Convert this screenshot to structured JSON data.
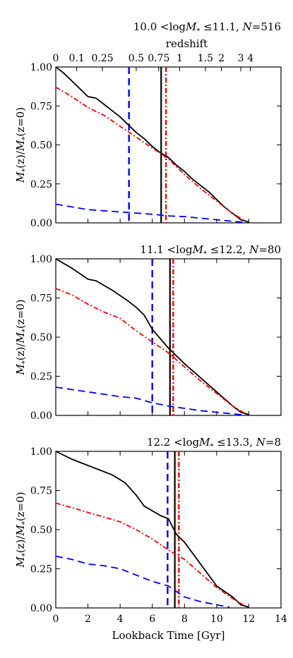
{
  "chart_data": [
    {
      "type": "line",
      "title": "10.0 <logM* ≤11.1, N=516",
      "ylabel": "M*(z)/M*(z=0)",
      "xlabel": "",
      "xlim": [
        0,
        14
      ],
      "ylim": [
        0,
        1
      ],
      "yticks": [
        "0.00",
        "0.25",
        "0.50",
        "0.75",
        "1.00"
      ],
      "x_top_axis": {
        "label": "redshift",
        "ticks": [
          {
            "label": "0",
            "lookback_gyr": 0.0
          },
          {
            "label": "0.1",
            "lookback_gyr": 1.3
          },
          {
            "label": "0.25",
            "lookback_gyr": 2.9
          },
          {
            "label": "0.5",
            "lookback_gyr": 5.0
          },
          {
            "label": "0.75",
            "lookback_gyr": 6.4
          },
          {
            "label": "1",
            "lookback_gyr": 7.7
          },
          {
            "label": "1.5",
            "lookback_gyr": 9.3
          },
          {
            "label": "2",
            "lookback_gyr": 10.3
          },
          {
            "label": "3",
            "lookback_gyr": 11.5
          },
          {
            "label": "4",
            "lookback_gyr": 12.1
          }
        ]
      },
      "series": [
        {
          "style": "solid",
          "color": "#000000",
          "x": [
            0,
            0.5,
            1.5,
            2.0,
            2.5,
            3.0,
            3.5,
            4.0,
            4.5,
            5.0,
            5.5,
            6.0,
            6.5,
            7.0,
            7.5,
            8.0,
            8.5,
            9.0,
            9.5,
            10.0,
            10.5,
            11.0,
            11.5,
            12.0
          ],
          "y": [
            1.0,
            0.96,
            0.86,
            0.81,
            0.8,
            0.76,
            0.72,
            0.68,
            0.63,
            0.58,
            0.54,
            0.49,
            0.45,
            0.42,
            0.37,
            0.33,
            0.28,
            0.24,
            0.2,
            0.15,
            0.1,
            0.06,
            0.02,
            0.005
          ]
        },
        {
          "style": "dashdot",
          "color": "#ff0000",
          "x": [
            0,
            1.0,
            2.0,
            3.0,
            4.0,
            5.0,
            6.0,
            7.0,
            8.0,
            9.0,
            10.0,
            11.0,
            11.8
          ],
          "y": [
            0.87,
            0.81,
            0.74,
            0.69,
            0.62,
            0.55,
            0.48,
            0.41,
            0.31,
            0.22,
            0.14,
            0.06,
            0.01
          ]
        },
        {
          "style": "dashed",
          "color": "#0000ff",
          "x": [
            0,
            2.0,
            4.0,
            6.0,
            7.0,
            8.0,
            9.0,
            10.0,
            11.0,
            11.8
          ],
          "y": [
            0.12,
            0.085,
            0.07,
            0.055,
            0.045,
            0.04,
            0.03,
            0.02,
            0.01,
            0.002
          ]
        }
      ],
      "vlines": [
        {
          "x": 4.55,
          "style": "dashed",
          "color": "#0000ff"
        },
        {
          "x": 6.55,
          "style": "solid",
          "color": "#000000"
        },
        {
          "x": 6.85,
          "style": "dashdot",
          "color": "#ff0000"
        }
      ]
    },
    {
      "type": "line",
      "title": "11.1 <logM* ≤12.2, N=80",
      "ylabel": "M*(z)/M*(z=0)",
      "xlabel": "",
      "xlim": [
        0,
        14
      ],
      "ylim": [
        0,
        1
      ],
      "yticks": [
        "0.00",
        "0.25",
        "0.50",
        "0.75",
        "1.00"
      ],
      "series": [
        {
          "style": "solid",
          "color": "#000000",
          "x": [
            0,
            1.0,
            2.0,
            2.5,
            3.5,
            4.5,
            5.0,
            5.5,
            6.0,
            7.0,
            8.0,
            9.0,
            10.0,
            11.0,
            11.5,
            12.0
          ],
          "y": [
            1.0,
            0.94,
            0.87,
            0.86,
            0.8,
            0.73,
            0.69,
            0.64,
            0.55,
            0.43,
            0.33,
            0.24,
            0.15,
            0.06,
            0.02,
            0.005
          ]
        },
        {
          "style": "dashdot",
          "color": "#ff0000",
          "x": [
            0,
            1.0,
            2.0,
            3.0,
            4.0,
            5.0,
            6.0,
            7.0,
            8.0,
            9.0,
            10.0,
            11.0,
            11.8
          ],
          "y": [
            0.81,
            0.77,
            0.71,
            0.66,
            0.62,
            0.54,
            0.47,
            0.4,
            0.31,
            0.22,
            0.14,
            0.06,
            0.01
          ]
        },
        {
          "style": "dashed",
          "color": "#0000ff",
          "x": [
            0,
            2.0,
            4.0,
            5.0,
            6.0,
            7.0,
            8.0,
            9.0,
            10.0,
            11.0,
            11.8
          ],
          "y": [
            0.18,
            0.15,
            0.12,
            0.11,
            0.08,
            0.06,
            0.045,
            0.03,
            0.02,
            0.01,
            0.002
          ]
        }
      ],
      "vlines": [
        {
          "x": 6.0,
          "style": "dashed",
          "color": "#0000ff"
        },
        {
          "x": 7.1,
          "style": "solid",
          "color": "#000000"
        },
        {
          "x": 7.3,
          "style": "dashdot",
          "color": "#ff0000"
        }
      ]
    },
    {
      "type": "line",
      "title": "12.2 <logM* ≤13.3, N=8",
      "ylabel": "M*(z)/M*(z=0)",
      "xlabel": "Lookback Time [Gyr]",
      "xlim": [
        0,
        14
      ],
      "ylim": [
        0,
        1
      ],
      "xticks": [
        "0",
        "2",
        "4",
        "6",
        "8",
        "10",
        "12",
        "14"
      ],
      "yticks": [
        "0.00",
        "0.25",
        "0.50",
        "0.75",
        "1.00"
      ],
      "series": [
        {
          "style": "solid",
          "color": "#000000",
          "x": [
            0,
            1.0,
            2.0,
            2.5,
            3.5,
            4.3,
            5.0,
            5.5,
            6.5,
            7.0,
            7.5,
            8.0,
            9.0,
            10.0,
            11.0,
            11.5,
            12.0
          ],
          "y": [
            1.0,
            0.95,
            0.91,
            0.89,
            0.85,
            0.8,
            0.72,
            0.65,
            0.59,
            0.57,
            0.47,
            0.42,
            0.28,
            0.14,
            0.07,
            0.02,
            0.005
          ]
        },
        {
          "style": "dashdot",
          "color": "#ff0000",
          "x": [
            0,
            1.0,
            2.0,
            3.0,
            4.0,
            5.0,
            6.0,
            7.0,
            8.0,
            9.0,
            10.0,
            11.0,
            11.8
          ],
          "y": [
            0.67,
            0.64,
            0.61,
            0.58,
            0.55,
            0.5,
            0.44,
            0.37,
            0.31,
            0.22,
            0.13,
            0.06,
            0.01
          ]
        },
        {
          "style": "dashed",
          "color": "#0000ff",
          "x": [
            0,
            1.0,
            2.0,
            3.0,
            4.0,
            5.0,
            6.0,
            7.0,
            8.0,
            9.0,
            10.0,
            10.8
          ],
          "y": [
            0.33,
            0.31,
            0.28,
            0.27,
            0.25,
            0.21,
            0.17,
            0.14,
            0.07,
            0.04,
            0.02,
            0.005
          ]
        }
      ],
      "vlines": [
        {
          "x": 6.95,
          "style": "dashed",
          "color": "#0000ff"
        },
        {
          "x": 7.4,
          "style": "solid",
          "color": "#000000"
        },
        {
          "x": 7.65,
          "style": "dashdot",
          "color": "#ff0000"
        }
      ]
    }
  ]
}
